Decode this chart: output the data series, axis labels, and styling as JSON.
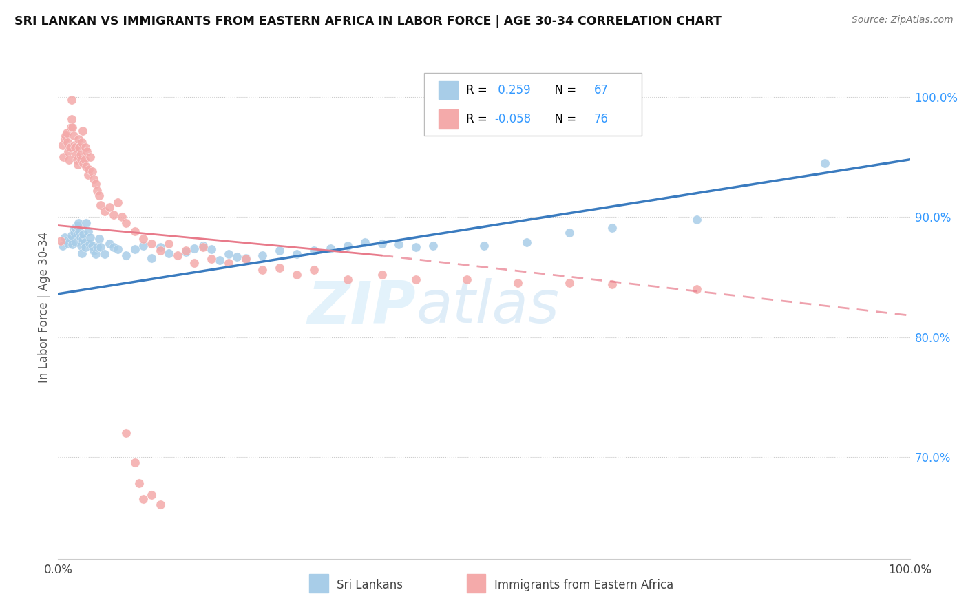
{
  "title": "SRI LANKAN VS IMMIGRANTS FROM EASTERN AFRICA IN LABOR FORCE | AGE 30-34 CORRELATION CHART",
  "source": "Source: ZipAtlas.com",
  "ylabel": "In Labor Force | Age 30-34",
  "xlim": [
    0.0,
    1.0
  ],
  "ylim": [
    0.615,
    1.035
  ],
  "r_blue": 0.259,
  "n_blue": 67,
  "r_pink": -0.058,
  "n_pink": 76,
  "blue_color": "#a8cde8",
  "pink_color": "#f4aaaa",
  "trend_blue": "#3a7bbf",
  "trend_pink": "#e87a8a",
  "watermark_zip": "ZIP",
  "watermark_atlas": "atlas",
  "trend_blue_start_y": 0.836,
  "trend_blue_end_y": 0.948,
  "trend_pink_solid_x2": 0.38,
  "trend_pink_start_y": 0.893,
  "trend_pink_mid_y": 0.868,
  "trend_pink_end_y": 0.818,
  "blue_points_x": [
    0.005,
    0.008,
    0.01,
    0.012,
    0.015,
    0.016,
    0.017,
    0.018,
    0.019,
    0.02,
    0.021,
    0.022,
    0.023,
    0.024,
    0.025,
    0.026,
    0.027,
    0.028,
    0.029,
    0.03,
    0.031,
    0.032,
    0.033,
    0.035,
    0.037,
    0.038,
    0.04,
    0.042,
    0.044,
    0.046,
    0.048,
    0.05,
    0.055,
    0.06,
    0.065,
    0.07,
    0.08,
    0.09,
    0.1,
    0.11,
    0.12,
    0.13,
    0.15,
    0.16,
    0.17,
    0.18,
    0.19,
    0.2,
    0.21,
    0.22,
    0.24,
    0.26,
    0.28,
    0.3,
    0.32,
    0.34,
    0.36,
    0.38,
    0.4,
    0.42,
    0.44,
    0.5,
    0.55,
    0.6,
    0.65,
    0.75,
    0.9
  ],
  "blue_points_y": [
    0.876,
    0.883,
    0.88,
    0.878,
    0.882,
    0.885,
    0.877,
    0.89,
    0.887,
    0.891,
    0.879,
    0.893,
    0.886,
    0.895,
    0.888,
    0.883,
    0.876,
    0.87,
    0.882,
    0.886,
    0.879,
    0.875,
    0.895,
    0.888,
    0.878,
    0.883,
    0.876,
    0.872,
    0.869,
    0.875,
    0.882,
    0.875,
    0.869,
    0.878,
    0.875,
    0.873,
    0.868,
    0.873,
    0.876,
    0.866,
    0.875,
    0.87,
    0.871,
    0.874,
    0.876,
    0.873,
    0.864,
    0.869,
    0.867,
    0.866,
    0.868,
    0.872,
    0.869,
    0.872,
    0.874,
    0.876,
    0.879,
    0.878,
    0.877,
    0.875,
    0.876,
    0.876,
    0.879,
    0.887,
    0.891,
    0.898,
    0.945
  ],
  "pink_points_x": [
    0.003,
    0.005,
    0.006,
    0.008,
    0.009,
    0.01,
    0.011,
    0.012,
    0.013,
    0.014,
    0.015,
    0.016,
    0.016,
    0.017,
    0.018,
    0.019,
    0.02,
    0.021,
    0.022,
    0.023,
    0.024,
    0.025,
    0.026,
    0.027,
    0.028,
    0.029,
    0.03,
    0.031,
    0.032,
    0.033,
    0.034,
    0.035,
    0.036,
    0.038,
    0.04,
    0.042,
    0.044,
    0.046,
    0.048,
    0.05,
    0.055,
    0.06,
    0.065,
    0.07,
    0.075,
    0.08,
    0.09,
    0.1,
    0.11,
    0.12,
    0.13,
    0.14,
    0.15,
    0.16,
    0.17,
    0.18,
    0.2,
    0.22,
    0.24,
    0.26,
    0.28,
    0.3,
    0.34,
    0.38,
    0.42,
    0.48,
    0.54,
    0.6,
    0.65,
    0.75,
    0.08,
    0.09,
    0.095,
    0.1,
    0.11,
    0.12
  ],
  "pink_points_y": [
    0.88,
    0.96,
    0.95,
    0.965,
    0.968,
    0.97,
    0.962,
    0.955,
    0.948,
    0.958,
    0.975,
    0.982,
    0.998,
    0.975,
    0.968,
    0.96,
    0.958,
    0.952,
    0.948,
    0.944,
    0.965,
    0.958,
    0.952,
    0.948,
    0.962,
    0.972,
    0.945,
    0.948,
    0.958,
    0.942,
    0.955,
    0.935,
    0.94,
    0.95,
    0.938,
    0.932,
    0.928,
    0.922,
    0.918,
    0.91,
    0.905,
    0.908,
    0.902,
    0.912,
    0.9,
    0.895,
    0.888,
    0.882,
    0.878,
    0.872,
    0.878,
    0.868,
    0.872,
    0.862,
    0.875,
    0.865,
    0.862,
    0.865,
    0.856,
    0.858,
    0.852,
    0.856,
    0.848,
    0.852,
    0.848,
    0.848,
    0.845,
    0.845,
    0.844,
    0.84,
    0.72,
    0.695,
    0.678,
    0.665,
    0.668,
    0.66
  ]
}
